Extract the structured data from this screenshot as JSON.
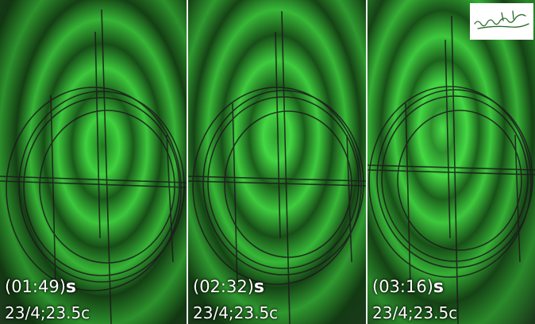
{
  "panels": [
    {
      "time": "(01:49)",
      "unit": "s",
      "conditions": "23/4;23.5c"
    },
    {
      "time": "(02:32)",
      "unit": "s",
      "conditions": "23/4;23.5c"
    },
    {
      "time": "(03:16)",
      "unit": "s",
      "conditions": "23/4;23.5c"
    }
  ],
  "colors": {
    "fringe_bright": "#3fd23f",
    "fringe_dark": "#123812",
    "background": "#1a2a1a",
    "ink": "#1b1b1b"
  },
  "signature_icon": "handwritten-signature-icon"
}
